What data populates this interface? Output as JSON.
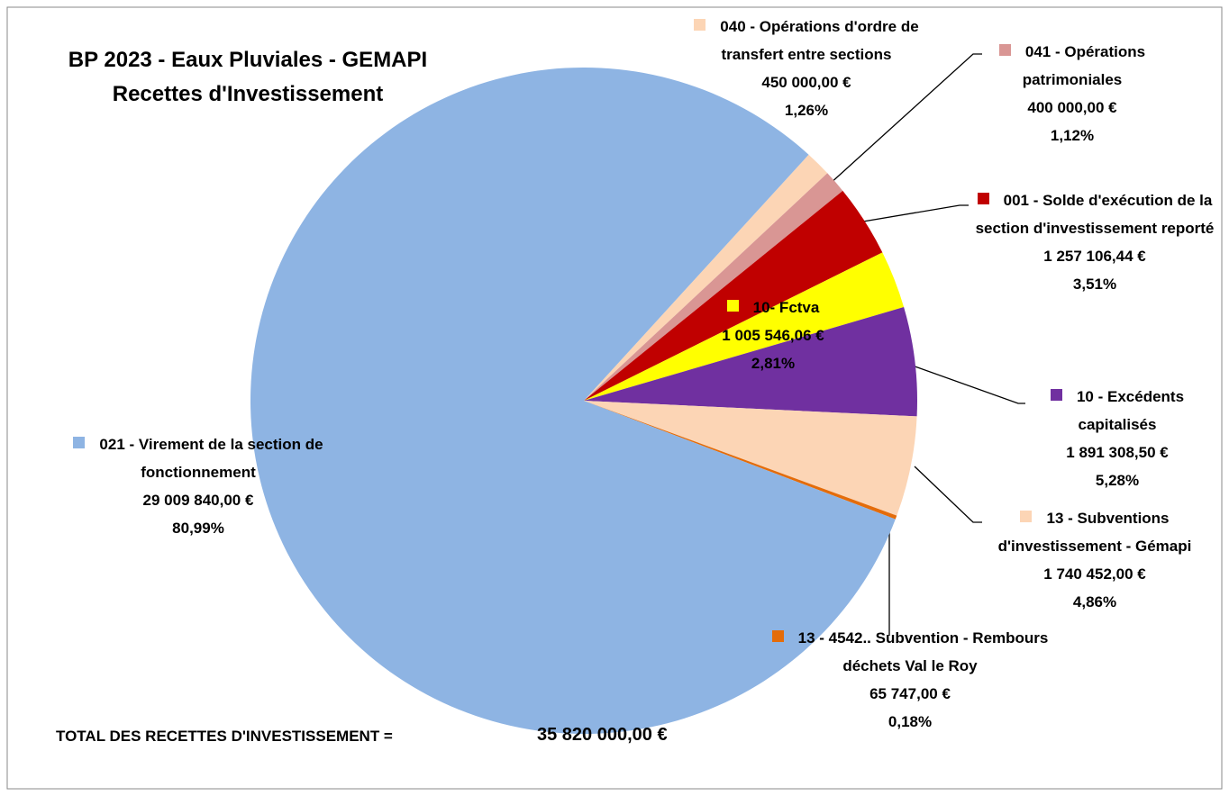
{
  "chart_data": {
    "type": "pie",
    "title": "BP 2023 - Eaux Pluviales - GEMAPI",
    "subtitle": "Recettes d'Investissement",
    "categories": [
      "040 - Opérations d'ordre de transfert entre sections",
      "041 - Opérations patrimoniales",
      "001 - Solde d'exécution de la section d'investissement reporté",
      "10- Fctva",
      "10 - Excédents capitalisés",
      "13 - Subventions d'investissement - Gémapi",
      "13 - 4542.. Subvention - Rembours déchets Val le Roy",
      "021 - Virement de la section de fonctionnement"
    ],
    "values": [
      450000,
      400000,
      1257106.44,
      1005546.06,
      1891308.5,
      1740452,
      65747,
      29009840
    ],
    "value_labels": [
      "450 000,00 €",
      "400 000,00 €",
      "1 257 106,44 €",
      "1 005 546,06 €",
      "1 891 308,50 €",
      "1 740 452,00 €",
      "65 747,00 €",
      "29 009 840,00 €"
    ],
    "percent_labels": [
      "1,26%",
      "1,12%",
      "3,51%",
      "2,81%",
      "5,28%",
      "4,86%",
      "0,18%",
      "80,99%"
    ],
    "colors": [
      "#fcd5b5",
      "#d99694",
      "#c00000",
      "#ffff00",
      "#7030a0",
      "#fcd5b5",
      "#e46c0a",
      "#8eb4e3"
    ],
    "total_text": "TOTAL DES RECETTES D'INVESTISSEMENT   =",
    "total": 35820000,
    "total_label": "35 820 000,00 €"
  }
}
